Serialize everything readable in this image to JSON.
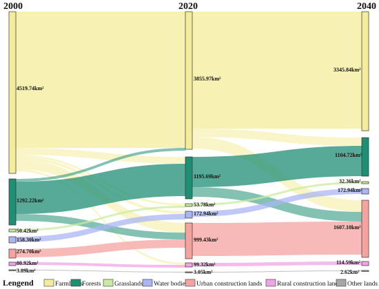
{
  "years": [
    "2000",
    "2020",
    "2040"
  ],
  "legend": {
    "title": "Lengend",
    "items": [
      {
        "key": "farmlands",
        "label": "Farmlands",
        "color": "#f4ec9a"
      },
      {
        "key": "forests",
        "label": "Forests",
        "color": "#1e8e74"
      },
      {
        "key": "grasslands",
        "label": "Grasslands",
        "color": "#c9ec9c"
      },
      {
        "key": "water",
        "label": "Water bodies",
        "color": "#aab5f3"
      },
      {
        "key": "urban",
        "label": "Urban construction lands",
        "color": "#f6a3a0"
      },
      {
        "key": "rural",
        "label": "Rural construction lands",
        "color": "#f0a4e4"
      },
      {
        "key": "other",
        "label": "Other lands",
        "color": "#a7a7a7"
      }
    ]
  },
  "nodes": {
    "2000": [
      {
        "type": "farmlands",
        "label": "4519.74km²"
      },
      {
        "type": "forests",
        "label": "1292.22km²"
      },
      {
        "type": "grasslands",
        "label": "50.42km²"
      },
      {
        "type": "water",
        "label": "158.30km²"
      },
      {
        "type": "urban",
        "label": "274.70km²"
      },
      {
        "type": "rural",
        "label": "80.92km²"
      },
      {
        "type": "other",
        "label": "3.89km²"
      }
    ],
    "2020": [
      {
        "type": "farmlands",
        "label": "3855.97km²"
      },
      {
        "type": "forests",
        "label": "1195.69km²"
      },
      {
        "type": "grasslands",
        "label": "53.78km²"
      },
      {
        "type": "water",
        "label": "172.94km²"
      },
      {
        "type": "urban",
        "label": "999.43km²"
      },
      {
        "type": "rural",
        "label": "99.32km²"
      },
      {
        "type": "other",
        "label": "3.05km²"
      }
    ],
    "2040": [
      {
        "type": "farmlands",
        "label": "3345.84km²"
      },
      {
        "type": "forests",
        "label": "1104.72km²"
      },
      {
        "type": "grasslands",
        "label": "32.36km²"
      },
      {
        "type": "water",
        "label": "172.94km²"
      },
      {
        "type": "urban",
        "label": "1607.10km²"
      },
      {
        "type": "rural",
        "label": "114.59km²"
      },
      {
        "type": "other",
        "label": "2.62km²"
      }
    ]
  },
  "flows_2000_2020": [
    {
      "from": "farmlands",
      "to": "farmlands"
    },
    {
      "from": "farmlands",
      "to": "forests"
    },
    {
      "from": "farmlands",
      "to": "grasslands"
    },
    {
      "from": "farmlands",
      "to": "water"
    },
    {
      "from": "farmlands",
      "to": "urban"
    },
    {
      "from": "farmlands",
      "to": "rural"
    },
    {
      "from": "forests",
      "to": "farmlands"
    },
    {
      "from": "forests",
      "to": "forests"
    },
    {
      "from": "forests",
      "to": "urban"
    },
    {
      "from": "grasslands",
      "to": "grasslands"
    },
    {
      "from": "water",
      "to": "water"
    },
    {
      "from": "urban",
      "to": "urban"
    },
    {
      "from": "rural",
      "to": "rural"
    },
    {
      "from": "other",
      "to": "other"
    }
  ],
  "flows_2020_2040": [
    {
      "from": "farmlands",
      "to": "farmlands"
    },
    {
      "from": "farmlands",
      "to": "forests"
    },
    {
      "from": "farmlands",
      "to": "urban"
    },
    {
      "from": "forests",
      "to": "forests"
    },
    {
      "from": "forests",
      "to": "urban"
    },
    {
      "from": "grasslands",
      "to": "grasslands"
    },
    {
      "from": "water",
      "to": "water"
    },
    {
      "from": "urban",
      "to": "urban"
    },
    {
      "from": "rural",
      "to": "rural"
    },
    {
      "from": "other",
      "to": "other"
    }
  ]
}
